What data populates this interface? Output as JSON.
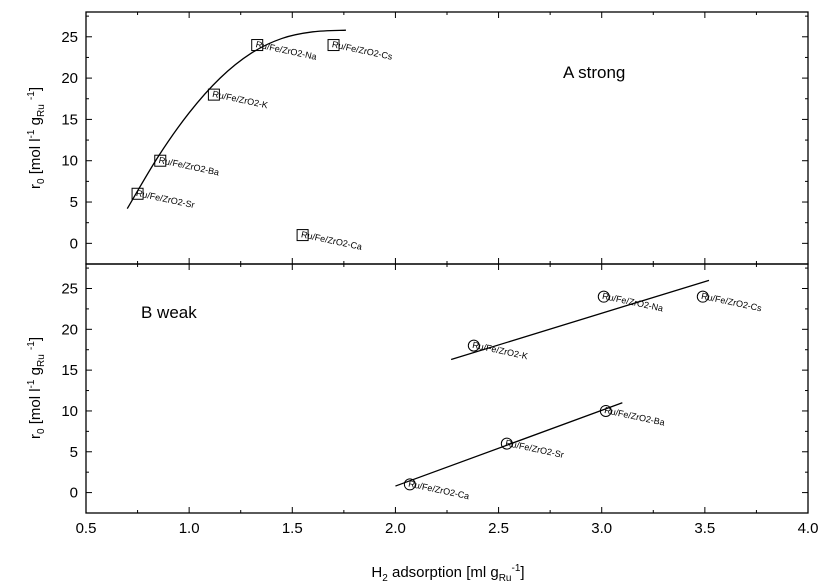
{
  "chart_data": {
    "type": "scatter",
    "x_axis": {
      "label_main": "H",
      "label_sub": "2",
      "label_mid": " adsorption [ml g",
      "label_sub2": "Ru",
      "label_sup": "-1",
      "label_end": "]",
      "range": [
        0.5,
        4.0
      ],
      "ticks": [
        "0.5",
        "1.0",
        "1.5",
        "2.0",
        "2.5",
        "3.0",
        "3.5",
        "4.0"
      ]
    },
    "panels": [
      {
        "id": "A",
        "label": "A strong",
        "y_axis": {
          "l1": "r",
          "l1_sub": "0",
          "l2": " [mol l",
          "l2_sup": "-1",
          "l3": " g",
          "l3_sub": "Ru",
          "l4": " ",
          "l4_sup": "-1",
          "l5": "]",
          "range": [
            -2.5,
            28
          ],
          "ticks": [
            "0",
            "5",
            "10",
            "15",
            "20",
            "25"
          ]
        },
        "marker": "square",
        "points": [
          {
            "x": 0.75,
            "y": 6,
            "label": "Ru/Fe/ZrO2-Sr"
          },
          {
            "x": 0.86,
            "y": 10,
            "label": "Ru/Fe/ZrO2-Ba"
          },
          {
            "x": 1.12,
            "y": 18,
            "label": "Ru/Fe/ZrO2-K"
          },
          {
            "x": 1.33,
            "y": 24,
            "label": "Ru/Fe/ZrO2-Na"
          },
          {
            "x": 1.7,
            "y": 24,
            "label": "Ru/Fe/ZrO2-Cs"
          },
          {
            "x": 1.55,
            "y": 1,
            "label": "Ru/Fe/ZrO2-Ca"
          }
        ],
        "fits": [
          {
            "type": "curve",
            "x": [
              0.7,
              0.85,
              1.0,
              1.15,
              1.3,
              1.45,
              1.6,
              1.76
            ],
            "y": [
              4.2,
              10.5,
              15.8,
              20.0,
              23.0,
              24.8,
              25.6,
              25.8
            ]
          }
        ]
      },
      {
        "id": "B",
        "label": "B weak",
        "y_axis": {
          "l1": "r",
          "l1_sub": "0",
          "l2": " [mol l",
          "l2_sup": "-1",
          "l3": " g",
          "l3_sub": "Ru",
          "l4": " ",
          "l4_sup": "-1",
          "l5": "]",
          "range": [
            -2.5,
            28
          ],
          "ticks": [
            "0",
            "5",
            "10",
            "15",
            "20",
            "25"
          ]
        },
        "marker": "circle",
        "points": [
          {
            "x": 2.38,
            "y": 18,
            "label": "Ru/Fe/ZrO2-K"
          },
          {
            "x": 3.01,
            "y": 24,
            "label": "Ru/Fe/ZrO2-Na"
          },
          {
            "x": 3.49,
            "y": 24,
            "label": "Ru/Fe/ZrO2-Cs"
          },
          {
            "x": 2.07,
            "y": 1,
            "label": "Ru/Fe/ZrO2-Ca"
          },
          {
            "x": 2.54,
            "y": 6,
            "label": "Ru/Fe/ZrO2-Sr"
          },
          {
            "x": 3.02,
            "y": 10,
            "label": "Ru/Fe/ZrO2-Ba"
          }
        ],
        "fits": [
          {
            "type": "line",
            "x": [
              2.27,
              3.52
            ],
            "y": [
              16.3,
              26.0
            ]
          },
          {
            "type": "line",
            "x": [
              2.0,
              3.1
            ],
            "y": [
              0.8,
              11.0
            ]
          }
        ]
      }
    ]
  }
}
